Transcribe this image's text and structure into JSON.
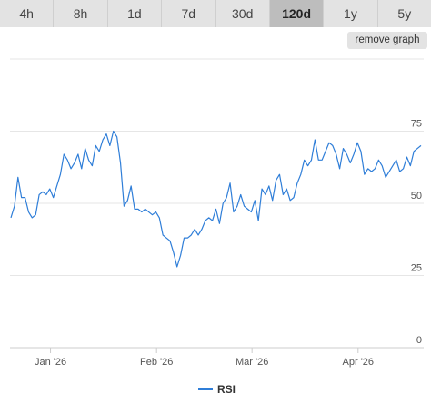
{
  "timeframes": {
    "items": [
      "4h",
      "8h",
      "1d",
      "7d",
      "30d",
      "120d",
      "1y",
      "5y"
    ],
    "active": "120d"
  },
  "remove_label": "remove graph",
  "colors": {
    "line": "#2f7ed8",
    "grid": "#e6e6e6",
    "tab_bg": "#e3e3e3",
    "tab_active": "#bdbdbd"
  },
  "chart_data": {
    "type": "line",
    "series": [
      {
        "name": "RSI",
        "values": [
          45,
          49,
          59,
          52,
          52,
          47,
          45,
          46,
          53,
          54,
          53,
          55,
          52,
          56,
          60,
          67,
          65,
          62,
          64,
          67,
          62,
          69,
          65,
          63,
          70,
          68,
          72,
          74,
          70,
          75,
          73,
          64,
          49,
          51,
          56,
          48,
          48,
          47,
          48,
          47,
          46,
          47,
          45,
          39,
          38,
          37,
          33,
          28,
          32,
          38,
          38,
          39,
          41,
          39,
          41,
          44,
          45,
          44,
          48,
          43,
          50,
          52,
          57,
          47,
          49,
          53,
          49,
          48,
          47,
          51,
          44,
          55,
          53,
          56,
          51,
          58,
          60,
          53,
          55,
          51,
          52,
          57,
          60,
          65,
          63,
          65,
          72,
          65,
          65,
          68,
          71,
          70,
          67,
          62,
          69,
          67,
          64,
          67,
          71,
          68,
          60,
          62,
          61,
          62,
          65,
          63,
          59,
          61,
          63,
          65,
          61,
          62,
          66,
          63,
          68,
          69,
          70
        ]
      }
    ],
    "x_labels": [
      "Jan '26",
      "Feb '26",
      "Mar '26",
      "Apr '26"
    ],
    "x_label_positions": [
      11.2,
      41.2,
      68.2,
      98.2
    ],
    "y_ticks": [
      0,
      25,
      50,
      75
    ],
    "ylim": [
      0,
      100
    ],
    "legend": "bottom-center",
    "grid": true
  }
}
